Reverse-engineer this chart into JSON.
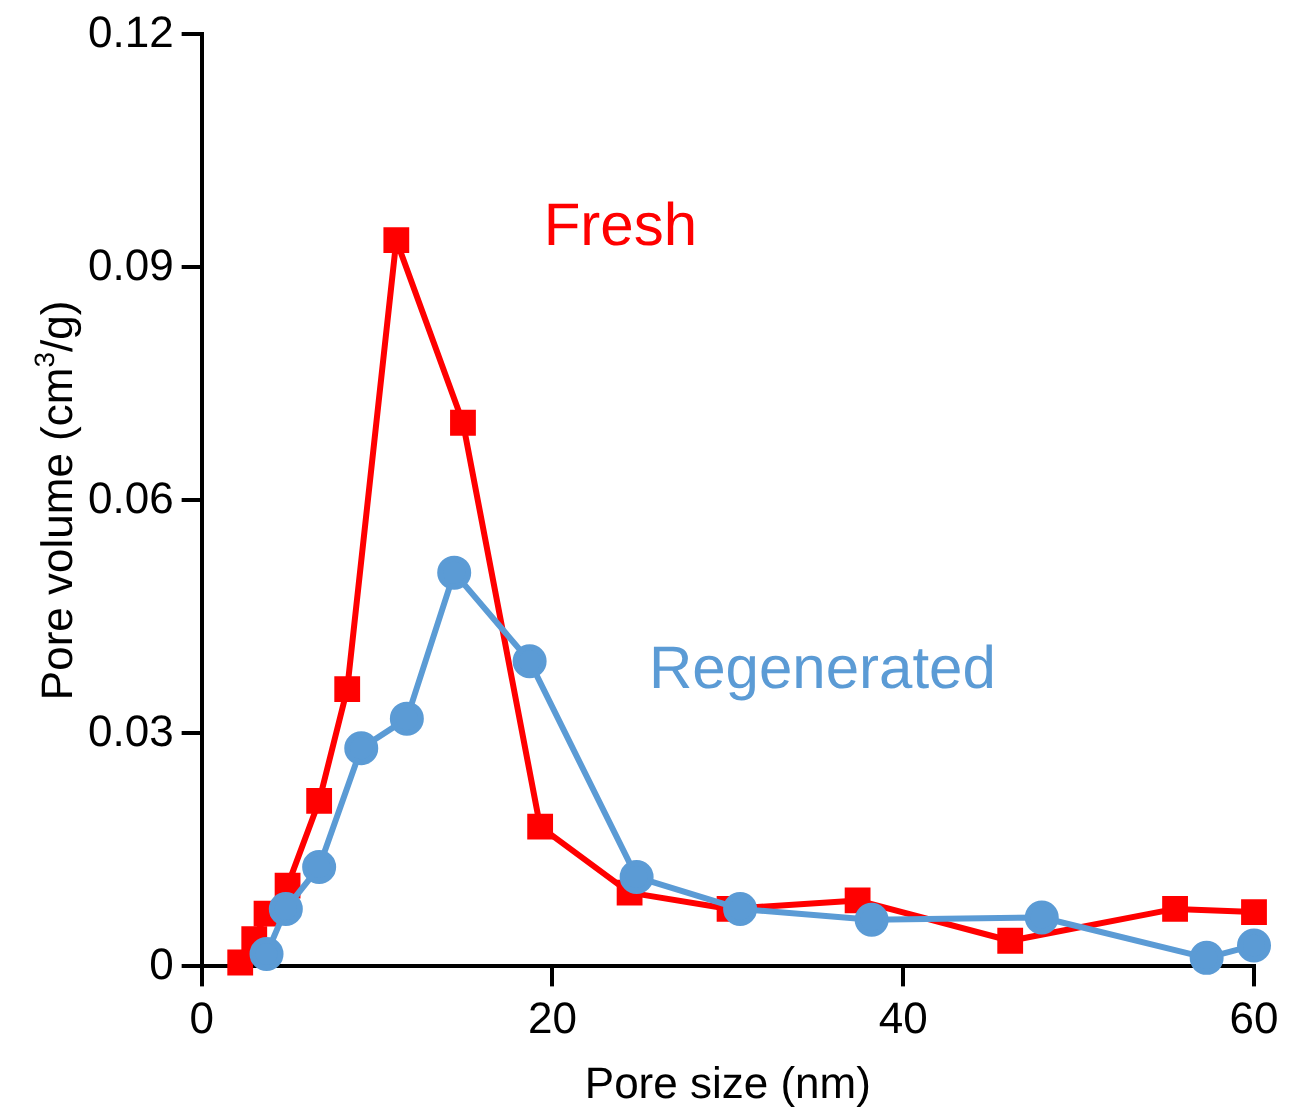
{
  "chart_data": {
    "type": "line",
    "xlabel": "Pore size (nm)",
    "ylabel": "Pore volume (cm$^{3}$/g)",
    "xlim": [
      0,
      60
    ],
    "xticks": [
      0,
      20,
      40,
      60
    ],
    "ylim": [
      0,
      0.12
    ],
    "yticks": [
      0,
      0.03,
      0.06,
      0.09,
      0.12
    ],
    "grid": false,
    "legend": false,
    "line_style": "solid",
    "series": [
      {
        "name": "Fresh",
        "color": "#ff0000",
        "marker": "square",
        "x": [
          2.2,
          3.0,
          3.7,
          4.9,
          6.7,
          8.3,
          11.1,
          14.9,
          19.3,
          24.4,
          30.1,
          37.4,
          46.1,
          55.5,
          60
        ],
        "values": [
          0.0005,
          0.0035,
          0.0068,
          0.0104,
          0.0213,
          0.0357,
          0.0935,
          0.07,
          0.018,
          0.0095,
          0.0074,
          0.0085,
          0.0033,
          0.0074,
          0.007
        ]
      },
      {
        "name": "Regenerated",
        "color": "#5b9bd5",
        "marker": "circle",
        "x": [
          3.7,
          4.8,
          6.7,
          9.1,
          11.7,
          14.4,
          18.7,
          24.8,
          30.7,
          38.2,
          47.9,
          57.3,
          60
        ],
        "values": [
          0.0016,
          0.0074,
          0.0128,
          0.0281,
          0.0319,
          0.0507,
          0.0393,
          0.0115,
          0.0074,
          0.006,
          0.0063,
          0.0011,
          0.0027
        ]
      }
    ]
  }
}
